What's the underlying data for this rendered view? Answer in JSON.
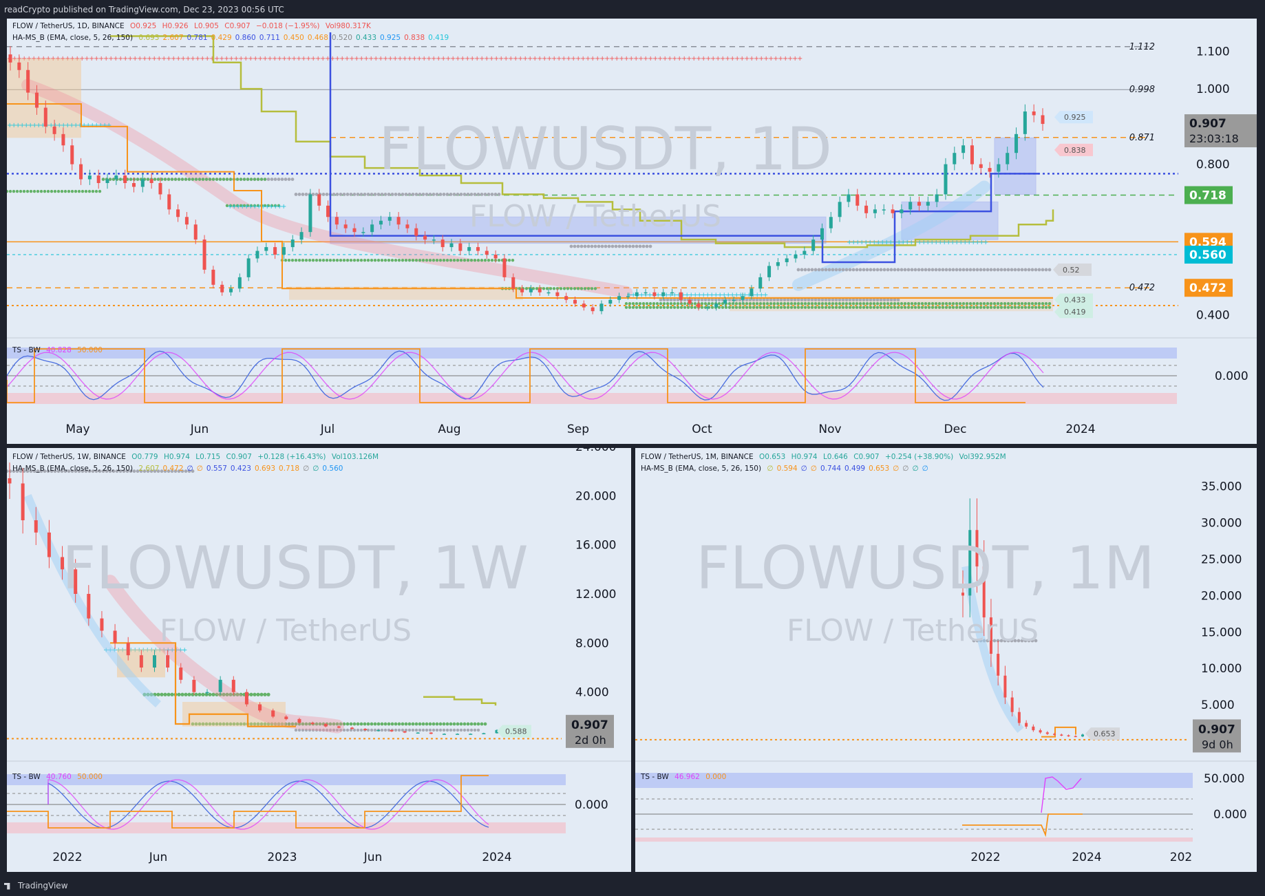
{
  "header": "readCrypto published on TradingView.com, Dec 23, 2023 00:56 UTC",
  "footer": "TradingView",
  "colors": {
    "up": "#26a69a",
    "down": "#ef5350",
    "blue_line": "#3b50e0",
    "orange": "#f7931a",
    "olive": "#b5bd3c",
    "cyan": "#00bcd4",
    "grey_dots": "#a6a9b3",
    "green_dots": "#64b268",
    "red_crosses": "#f05454",
    "cyan_crosses": "#26c6da",
    "magenta": "#e040fb",
    "ts_blue": "#4a6ee0"
  },
  "panels": [
    {
      "id": "daily",
      "watermark": "FLOWUSDT, 1D",
      "watermark_sub": "FLOW / TetherUS",
      "legend1": {
        "symbol": "FLOW / TetherUS, 1D, BINANCE",
        "o": "O0.925",
        "h": "H0.926",
        "l": "L0.905",
        "c": "C0.907",
        "chg": "−0.018 (−1.95%)",
        "vol": "Vol980.317K"
      },
      "legend2": {
        "name": "HA-MS_B (EMA, close, 5, 26, 150)",
        "values": [
          "0.693",
          "2.607",
          "0.781",
          "0.429",
          "0.860",
          "0.711",
          "0.450",
          "0.468",
          "0.520",
          "0.433",
          "0.925",
          "0.838",
          "0.419"
        ]
      },
      "osc_legend": {
        "name": "TS - BW",
        "v1": "40.828",
        "v2": "50.000",
        "osc_zero": "0.000"
      },
      "time_labels": [
        "May",
        "Jun",
        "Jul",
        "Aug",
        "Sep",
        "Oct",
        "Nov",
        "Dec",
        "2024"
      ],
      "chart_data": {
        "type": "candlestick",
        "timeframe": "1D",
        "ylim": [
          0.35,
          1.15
        ],
        "y_ticks": [
          "1.100",
          "1.000",
          "0.800",
          "0.400"
        ],
        "level_labels": [
          {
            "value": "1.112",
            "y": 1.112
          },
          {
            "value": "0.998",
            "y": 0.998
          },
          {
            "value": "0.871",
            "y": 0.871
          },
          {
            "value": "0.472",
            "y": 0.472
          }
        ],
        "price_badges": [
          {
            "value": "0.907",
            "y": 0.907,
            "color": "#9a9a9a",
            "sub": "23:03:18"
          },
          {
            "value": "0.718",
            "y": 0.718,
            "color": "#4caf50"
          },
          {
            "value": "0.594",
            "y": 0.594,
            "color": "#f7931a"
          },
          {
            "value": "0.560",
            "y": 0.56,
            "color": "#00bcd4"
          },
          {
            "value": "0.472",
            "y": 0.472,
            "color": "#f7931a"
          }
        ],
        "tags": [
          {
            "value": "0.925",
            "y": 0.925
          },
          {
            "value": "0.838",
            "y": 0.838
          },
          {
            "value": "0.52",
            "y": 0.52
          },
          {
            "value": "0.433",
            "y": 0.433
          },
          {
            "value": "0.419",
            "y": 0.419
          }
        ],
        "close_path": [
          1.07,
          1.05,
          0.99,
          0.95,
          0.9,
          0.88,
          0.85,
          0.8,
          0.76,
          0.77,
          0.75,
          0.76,
          0.77,
          0.75,
          0.74,
          0.76,
          0.75,
          0.72,
          0.68,
          0.66,
          0.64,
          0.6,
          0.52,
          0.48,
          0.46,
          0.47,
          0.5,
          0.55,
          0.57,
          0.58,
          0.56,
          0.58,
          0.6,
          0.62,
          0.72,
          0.69,
          0.66,
          0.64,
          0.63,
          0.62,
          0.62,
          0.64,
          0.65,
          0.66,
          0.64,
          0.63,
          0.61,
          0.6,
          0.6,
          0.58,
          0.59,
          0.57,
          0.58,
          0.57,
          0.56,
          0.55,
          0.5,
          0.47,
          0.46,
          0.47,
          0.46,
          0.46,
          0.45,
          0.44,
          0.43,
          0.42,
          0.41,
          0.43,
          0.44,
          0.45,
          0.45,
          0.46,
          0.46,
          0.45,
          0.46,
          0.46,
          0.44,
          0.43,
          0.42,
          0.42,
          0.43,
          0.44,
          0.44,
          0.45,
          0.47,
          0.5,
          0.53,
          0.54,
          0.55,
          0.56,
          0.57,
          0.6,
          0.63,
          0.66,
          0.7,
          0.72,
          0.69,
          0.67,
          0.68,
          0.68,
          0.67,
          0.68,
          0.7,
          0.69,
          0.7,
          0.72,
          0.8,
          0.83,
          0.85,
          0.8,
          0.79,
          0.78,
          0.8,
          0.83,
          0.88,
          0.94,
          0.93,
          0.907
        ]
      }
    },
    {
      "id": "weekly",
      "watermark": "FLOWUSDT, 1W",
      "watermark_sub": "FLOW / TetherUS",
      "legend1": {
        "symbol": "FLOW / TetherUS, 1W, BINANCE",
        "o": "O0.779",
        "h": "H0.974",
        "l": "L0.715",
        "c": "C0.907",
        "chg": "+0.128 (+16.43%)",
        "vol": "Vol103.126M"
      },
      "legend2": {
        "name": "HA-MS_B (EMA, close, 5, 26, 150)",
        "values": [
          "2.607",
          "0.472",
          "∅",
          "∅",
          "0.557",
          "0.423",
          "0.693",
          "0.718",
          "∅",
          "∅",
          "0.560"
        ]
      },
      "osc_legend": {
        "name": "TS - BW",
        "v1": "40.760",
        "v2": "50.000",
        "osc_zero": "0.000"
      },
      "time_labels": [
        "2022",
        "Jun",
        "2023",
        "Jun",
        "2024"
      ],
      "chart_data": {
        "type": "candlestick",
        "timeframe": "1W",
        "ylim": [
          0,
          24
        ],
        "y_ticks": [
          "24.000",
          "20.000",
          "16.000",
          "12.000",
          "8.000",
          "4.000"
        ],
        "price_badges": [
          {
            "value": "0.907",
            "y": 0.907,
            "color": "#9a9a9a",
            "sub": "2d 0h"
          }
        ],
        "tags": [
          {
            "value": "0.588",
            "y": 0.588
          }
        ],
        "close_path": [
          21,
          18,
          17,
          15,
          14,
          12,
          10,
          9,
          8,
          7,
          6,
          7,
          6,
          5,
          4,
          4,
          5,
          4,
          3,
          2.5,
          2,
          1.8,
          1.5,
          1.4,
          1.2,
          1.1,
          1,
          0.9,
          0.9,
          0.8,
          0.7,
          0.7,
          0.6,
          0.6,
          0.6,
          0.6,
          0.65,
          0.907
        ]
      }
    },
    {
      "id": "monthly",
      "watermark": "FLOWUSDT, 1M",
      "watermark_sub": "FLOW / TetherUS",
      "legend1": {
        "symbol": "FLOW / TetherUS, 1M, BINANCE",
        "o": "O0.653",
        "h": "H0.974",
        "l": "L0.646",
        "c": "C0.907",
        "chg": "+0.254 (+38.90%)",
        "vol": "Vol392.952M"
      },
      "legend2": {
        "name": "HA-MS_B (EMA, close, 5, 26, 150)",
        "values": [
          "∅",
          "0.594",
          "∅",
          "∅",
          "0.744",
          "0.499",
          "0.653",
          "∅",
          "∅",
          "∅",
          "∅"
        ]
      },
      "osc_legend": {
        "name": "TS - BW",
        "v1": "46.962",
        "v2": "0.000",
        "osc_zero": "0.000"
      },
      "time_labels": [
        "2022",
        "2024",
        "202"
      ],
      "chart_data": {
        "type": "candlestick",
        "timeframe": "1M",
        "ylim": [
          0,
          38
        ],
        "y_ticks": [
          "35.000",
          "30.000",
          "25.000",
          "20.000",
          "15.000",
          "10.000",
          "5.000"
        ],
        "price_badges": [
          {
            "value": "0.907",
            "y": 0.907,
            "color": "#9a9a9a",
            "sub": "9d 0h"
          }
        ],
        "tags": [
          {
            "value": "0.653",
            "y": 0.653
          }
        ],
        "close_path": [
          20,
          29,
          24,
          17,
          12,
          9,
          6,
          4,
          2.5,
          2,
          1.5,
          1.2,
          1,
          0.9,
          0.8,
          0.7,
          0.65,
          0.907
        ]
      }
    }
  ]
}
